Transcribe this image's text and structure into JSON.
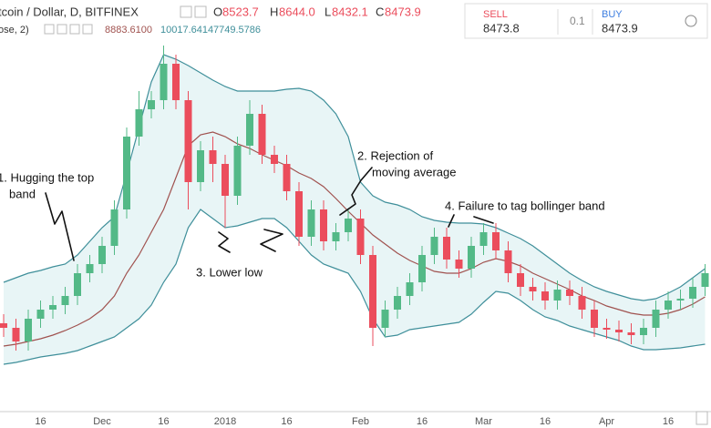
{
  "header": {
    "symbol": "tcoin / Dollar, D, BITFINEX",
    "ohlc": [
      "O",
      "8523.7",
      "H",
      "8644.0",
      "L",
      "8432.1",
      "C",
      "8473.9"
    ],
    "indicator": "ose, 2)",
    "indicator_values": [
      "8883.6100",
      "10017.6414",
      "7749.5786"
    ]
  },
  "trade_panel": {
    "sell_label": "SELL",
    "sell_price": "8473.8",
    "spread": "0.1",
    "buy_label": "BUY",
    "buy_price": "8473.9"
  },
  "chart_data": {
    "type": "candlestick",
    "categories": [
      null,
      null,
      null,
      "16",
      null,
      null,
      null,
      null,
      "Dec",
      null,
      null,
      null,
      null,
      "16",
      null,
      null,
      null,
      null,
      "2018",
      null,
      null,
      null,
      null,
      "16",
      null,
      null,
      null,
      null,
      null,
      "Feb",
      null,
      null,
      null,
      null,
      "16",
      null,
      null,
      null,
      null,
      "Mar",
      null,
      null,
      null,
      null,
      "16",
      null,
      null,
      null,
      null,
      "Apr",
      null,
      null,
      null,
      null,
      "16",
      null,
      null,
      null
    ],
    "open": [
      9350,
      9200,
      8750,
      9500,
      9800,
      9950,
      10250,
      11000,
      11300,
      11900,
      13100,
      15500,
      16400,
      16700,
      17900,
      16700,
      14000,
      15050,
      14600,
      13550,
      15200,
      16250,
      14900,
      14600,
      13700,
      12200,
      13100,
      12050,
      12350,
      12800,
      11600,
      9200,
      9800,
      10250,
      10700,
      11600,
      12200,
      11450,
      11150,
      11900,
      12350,
      11750,
      11000,
      10550,
      10400,
      10100,
      10460,
      10250,
      9800,
      9200,
      9140,
      9050,
      8960,
      9200,
      9800,
      10100,
      10160,
      10550
    ],
    "high": [
      9650,
      9500,
      9800,
      10100,
      10250,
      10550,
      11300,
      11600,
      12200,
      13400,
      15800,
      17000,
      17000,
      18500,
      18200,
      17000,
      15350,
      15500,
      14900,
      15500,
      16700,
      16550,
      15200,
      14900,
      14000,
      13400,
      13400,
      12650,
      13100,
      13100,
      11900,
      10100,
      10550,
      11000,
      11900,
      12500,
      12500,
      11750,
      12200,
      12650,
      12650,
      12050,
      11300,
      10850,
      10700,
      10760,
      10760,
      10550,
      10100,
      9500,
      9440,
      9350,
      9500,
      10100,
      10400,
      10460,
      10850,
      11300
    ],
    "low": [
      8900,
      8450,
      8450,
      9200,
      9500,
      9650,
      9950,
      10700,
      11000,
      11600,
      12800,
      15200,
      16100,
      16400,
      16400,
      13100,
      13700,
      14000,
      12500,
      13250,
      14900,
      14600,
      14300,
      13400,
      11900,
      11900,
      11750,
      11750,
      12050,
      11300,
      8600,
      8900,
      9500,
      9950,
      10400,
      11300,
      11150,
      10850,
      10850,
      11600,
      11450,
      10700,
      10250,
      10100,
      9800,
      9800,
      9950,
      9500,
      8900,
      8840,
      8750,
      8660,
      8660,
      8900,
      9500,
      9800,
      9860,
      10250
    ],
    "close": [
      9200,
      8750,
      9500,
      9800,
      9950,
      10250,
      11000,
      11300,
      11900,
      13100,
      15500,
      16400,
      16700,
      17900,
      16700,
      14000,
      15050,
      14600,
      13550,
      15200,
      16250,
      14900,
      14600,
      13700,
      12200,
      13100,
      12050,
      12350,
      12800,
      11600,
      9200,
      9800,
      10250,
      10700,
      11600,
      12200,
      11450,
      11150,
      11900,
      12350,
      11750,
      11000,
      10550,
      10400,
      10100,
      10460,
      10250,
      9800,
      9200,
      9140,
      9050,
      8960,
      9200,
      9800,
      10100,
      10160,
      10550,
      11000
    ],
    "bands": {
      "upper": [
        10700,
        10850,
        11000,
        11090,
        11210,
        11300,
        11600,
        12050,
        12500,
        12860,
        14300,
        15800,
        17300,
        18200,
        18050,
        17840,
        17600,
        17360,
        17150,
        17000,
        17000,
        17000,
        17000,
        17060,
        17090,
        17000,
        16700,
        16250,
        15500,
        14000,
        13550,
        13340,
        13250,
        13100,
        12860,
        12740,
        12680,
        12650,
        12650,
        12620,
        12500,
        12320,
        12140,
        11900,
        11600,
        11300,
        11000,
        10760,
        10550,
        10400,
        10280,
        10160,
        10100,
        10160,
        10340,
        10550,
        10850,
        11150
      ],
      "middle": [
        8600,
        8660,
        8750,
        8840,
        8960,
        9110,
        9290,
        9500,
        9800,
        10250,
        11000,
        11600,
        12350,
        13100,
        14150,
        15200,
        15560,
        15650,
        15500,
        15260,
        15110,
        14900,
        14720,
        14540,
        14300,
        14120,
        13850,
        13460,
        13040,
        12650,
        12260,
        11960,
        11660,
        11420,
        11240,
        11060,
        11000,
        11000,
        11150,
        11360,
        11480,
        11390,
        11240,
        11000,
        10820,
        10640,
        10460,
        10250,
        10100,
        9920,
        9800,
        9680,
        9620,
        9620,
        9680,
        9800,
        9980,
        10220
      ],
      "lower": [
        8000,
        8060,
        8150,
        8240,
        8300,
        8360,
        8450,
        8600,
        8750,
        8900,
        9200,
        9500,
        9950,
        10700,
        11300,
        12500,
        13100,
        12800,
        12500,
        12560,
        12680,
        12800,
        12800,
        12500,
        12050,
        11600,
        11300,
        11150,
        11000,
        10400,
        9500,
        8900,
        8960,
        9140,
        9200,
        9260,
        9320,
        9380,
        9650,
        10040,
        10400,
        10340,
        10100,
        9800,
        9560,
        9440,
        9260,
        9140,
        9020,
        8900,
        8780,
        8600,
        8480,
        8480,
        8510,
        8540,
        8600,
        8660
      ]
    },
    "ylim": [
      6350,
      20000
    ],
    "up_color": "#53b987",
    "down_color": "#eb4d5c",
    "band_color": "#3f8f9a",
    "middle_color": "#a0524f",
    "fill_color": "#e8f5f6",
    "annotations": [
      {
        "lines": [
          "1. Hugging the top",
          "band"
        ]
      },
      {
        "lines": [
          "2. Rejection of",
          "moving average"
        ]
      },
      {
        "lines": [
          "3. Lower low"
        ]
      },
      {
        "lines": [
          "4. Failure to tag bollinger band"
        ]
      }
    ]
  }
}
